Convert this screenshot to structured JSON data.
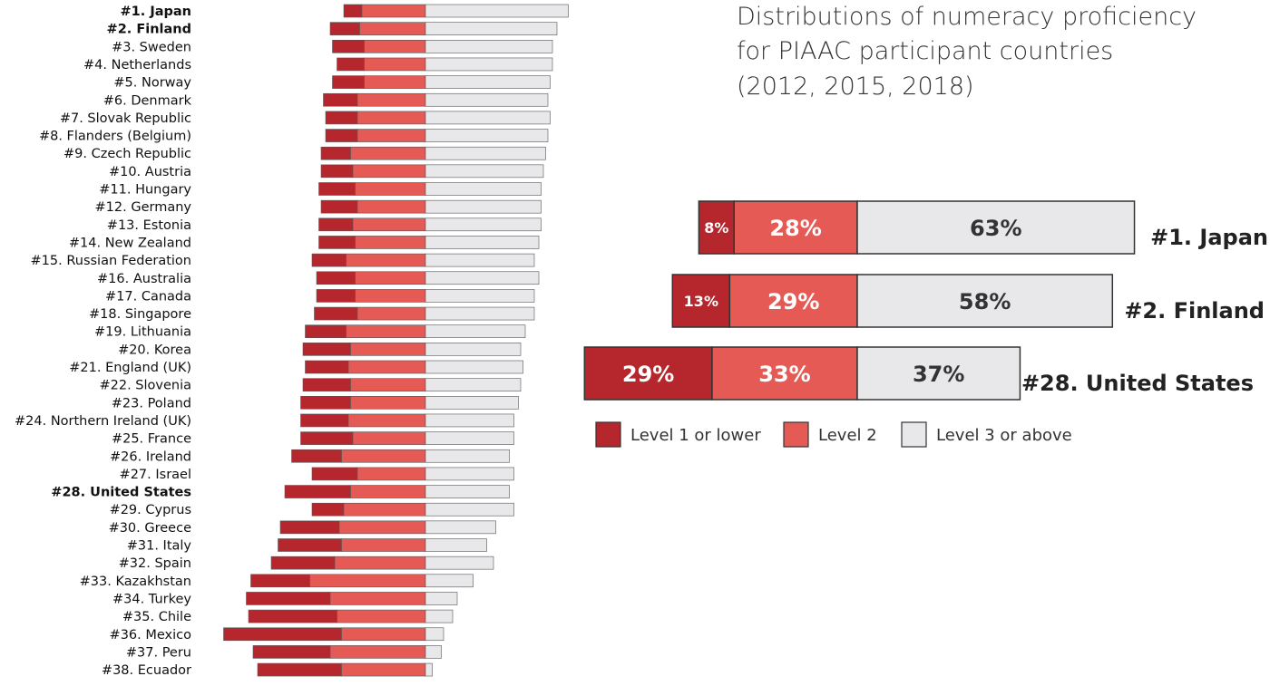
{
  "title_lines": [
    "Distributions of numeracy proficiency",
    "for PIAAC participant countries",
    "(2012, 2015, 2018)"
  ],
  "legend": [
    {
      "label": "Level 1 or lower",
      "color": "#b5272d"
    },
    {
      "label": "Level 2",
      "color": "#e55a55"
    },
    {
      "label": "Level 3 or above",
      "color": "#e8e8ea"
    }
  ],
  "chart_data": [
    {
      "type": "bar",
      "orientation": "horizontal",
      "stacking": "diverging",
      "title": "",
      "categories": [
        "#1. Japan",
        "#2. Finland",
        "#3. Sweden",
        "#4. Netherlands",
        "#5. Norway",
        "#6. Denmark",
        "#7. Slovak Republic",
        "#8. Flanders (Belgium)",
        "#9. Czech Republic",
        "#10. Austria",
        "#11. Hungary",
        "#12. Germany",
        "#13. Estonia",
        "#14. New Zealand",
        "#15. Russian Federation",
        "#16. Australia",
        "#17. Canada",
        "#18. Singapore",
        "#19. Lithuania",
        "#20. Korea",
        "#21. England (UK)",
        "#22. Slovenia",
        "#23. Poland",
        "#24. Northern Ireland (UK)",
        "#25. France",
        "#26. Ireland",
        "#27. Israel",
        "#28. United States",
        "#29. Cyprus",
        "#30. Greece",
        "#31. Italy",
        "#32. Spain",
        "#33. Kazakhstan",
        "#34. Turkey",
        "#35. Chile",
        "#36. Mexico",
        "#37. Peru",
        "#38. Ecuador"
      ],
      "highlighted": [
        "#1. Japan",
        "#2. Finland",
        "#28. United States"
      ],
      "series": [
        {
          "name": "Level 1 or lower",
          "values": [
            8,
            13,
            14,
            12,
            14,
            15,
            14,
            14,
            13,
            14,
            16,
            16,
            15,
            16,
            15,
            17,
            17,
            19,
            18,
            21,
            19,
            21,
            22,
            21,
            23,
            22,
            20,
            29,
            14,
            26,
            28,
            28,
            26,
            37,
            39,
            52,
            34,
            37
          ]
        },
        {
          "name": "Level 2",
          "values": [
            28,
            29,
            27,
            27,
            27,
            30,
            30,
            30,
            33,
            32,
            31,
            30,
            32,
            31,
            35,
            31,
            31,
            30,
            35,
            33,
            34,
            33,
            33,
            34,
            32,
            37,
            30,
            33,
            36,
            38,
            37,
            40,
            51,
            42,
            39,
            37,
            42,
            37
          ]
        },
        {
          "name": "Level 3 or above",
          "values": [
            63,
            58,
            56,
            56,
            55,
            54,
            55,
            54,
            53,
            52,
            51,
            51,
            51,
            50,
            48,
            50,
            48,
            48,
            44,
            42,
            43,
            42,
            41,
            39,
            39,
            37,
            39,
            37,
            39,
            31,
            27,
            30,
            21,
            14,
            12,
            8,
            7,
            3
          ]
        }
      ]
    },
    {
      "type": "bar",
      "orientation": "horizontal",
      "stacking": "diverging",
      "title": "",
      "categories": [
        "#1. Japan",
        "#2. Finland",
        "#28. United States"
      ],
      "series": [
        {
          "name": "Level 1 or lower",
          "values": [
            8,
            13,
            29
          ],
          "labels": [
            "8%",
            "13%",
            "29%"
          ]
        },
        {
          "name": "Level 2",
          "values": [
            28,
            29,
            33
          ],
          "labels": [
            "28%",
            "29%",
            "33%"
          ]
        },
        {
          "name": "Level 3 or above",
          "values": [
            63,
            58,
            37
          ],
          "labels": [
            "63%",
            "58%",
            "37%"
          ]
        }
      ]
    }
  ]
}
